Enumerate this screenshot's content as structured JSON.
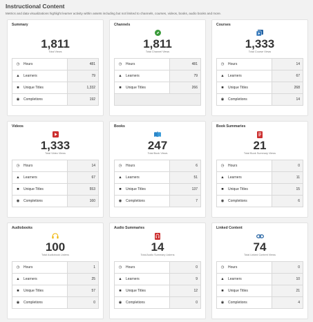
{
  "page": {
    "title": "Instructional Content",
    "subtitle": "Metrics and data visualizations highlight learner activity within assets including but not limited to channels, courses, videos, books, audio books and more."
  },
  "colors": {
    "channels_icon": "#3a9a3a",
    "courses_icon": "#1f5fa0",
    "videos_icon": "#cc2e2e",
    "books_icon": "#2a86c9",
    "book_summaries_icon": "#cc2e2e",
    "audiobooks_icon": "#f0b400",
    "audio_summaries_icon": "#cc2e2e",
    "linked_content_icon": "#1f5fa0"
  },
  "cards": {
    "summary": {
      "title": "Summary",
      "total": "1,811",
      "total_label": "Total Views",
      "rows": [
        {
          "label": "Hours",
          "value": "481"
        },
        {
          "label": "Learners",
          "value": "79"
        },
        {
          "label": "Unique Titles",
          "value": "1,332"
        },
        {
          "label": "Completions",
          "value": "192"
        }
      ]
    },
    "channels": {
      "title": "Channels",
      "icon": "compass-icon",
      "total": "1,811",
      "total_label": "Total Channel Views",
      "rows": [
        {
          "label": "Hours",
          "value": "481"
        },
        {
          "label": "Learners",
          "value": "79"
        },
        {
          "label": "Unique Titles",
          "value": "266"
        }
      ]
    },
    "courses": {
      "title": "Courses",
      "icon": "course-play-icon",
      "total": "1,333",
      "total_label": "Total Course Views",
      "rows": [
        {
          "label": "Hours",
          "value": "14"
        },
        {
          "label": "Learners",
          "value": "67"
        },
        {
          "label": "Unique Titles",
          "value": "268"
        },
        {
          "label": "Completions",
          "value": "14"
        }
      ]
    },
    "videos": {
      "title": "Videos",
      "icon": "video-play-icon",
      "total": "1,333",
      "total_label": "Total Video Views",
      "rows": [
        {
          "label": "Hours",
          "value": "14"
        },
        {
          "label": "Learners",
          "value": "67"
        },
        {
          "label": "Unique Titles",
          "value": "553"
        },
        {
          "label": "Completions",
          "value": "160"
        }
      ]
    },
    "books": {
      "title": "Books",
      "icon": "open-book-icon",
      "total": "247",
      "total_label": "Total Book Views",
      "rows": [
        {
          "label": "Hours",
          "value": "6"
        },
        {
          "label": "Learners",
          "value": "51"
        },
        {
          "label": "Unique Titles",
          "value": "137"
        },
        {
          "label": "Completions",
          "value": "7"
        }
      ]
    },
    "book_summaries": {
      "title": "Book Summaries",
      "icon": "book-summary-icon",
      "total": "21",
      "total_label": "Total Book Summary Views",
      "rows": [
        {
          "label": "Hours",
          "value": "0"
        },
        {
          "label": "Learners",
          "value": "11"
        },
        {
          "label": "Unique Titles",
          "value": "15"
        },
        {
          "label": "Completions",
          "value": "6"
        }
      ]
    },
    "audiobooks": {
      "title": "Audiobooks",
      "icon": "headphones-icon",
      "total": "100",
      "total_label": "Total Audiobook Listens",
      "rows": [
        {
          "label": "Hours",
          "value": "1"
        },
        {
          "label": "Learners",
          "value": "25"
        },
        {
          "label": "Unique Titles",
          "value": "57"
        },
        {
          "label": "Completions",
          "value": "0"
        }
      ]
    },
    "audio_summaries": {
      "title": "Audio Summaries",
      "icon": "audio-summary-icon",
      "total": "14",
      "total_label": "Total Audio Summary Listens",
      "rows": [
        {
          "label": "Hours",
          "value": "0"
        },
        {
          "label": "Learners",
          "value": "9"
        },
        {
          "label": "Unique Titles",
          "value": "12"
        },
        {
          "label": "Completions",
          "value": "0"
        }
      ]
    },
    "linked_content": {
      "title": "Linked Content",
      "icon": "link-icon",
      "total": "74",
      "total_label": "Total Linked Content Views",
      "rows": [
        {
          "label": "Hours",
          "value": "0"
        },
        {
          "label": "Learners",
          "value": "10"
        },
        {
          "label": "Unique Titles",
          "value": "21"
        },
        {
          "label": "Completions",
          "value": "4"
        }
      ]
    }
  }
}
